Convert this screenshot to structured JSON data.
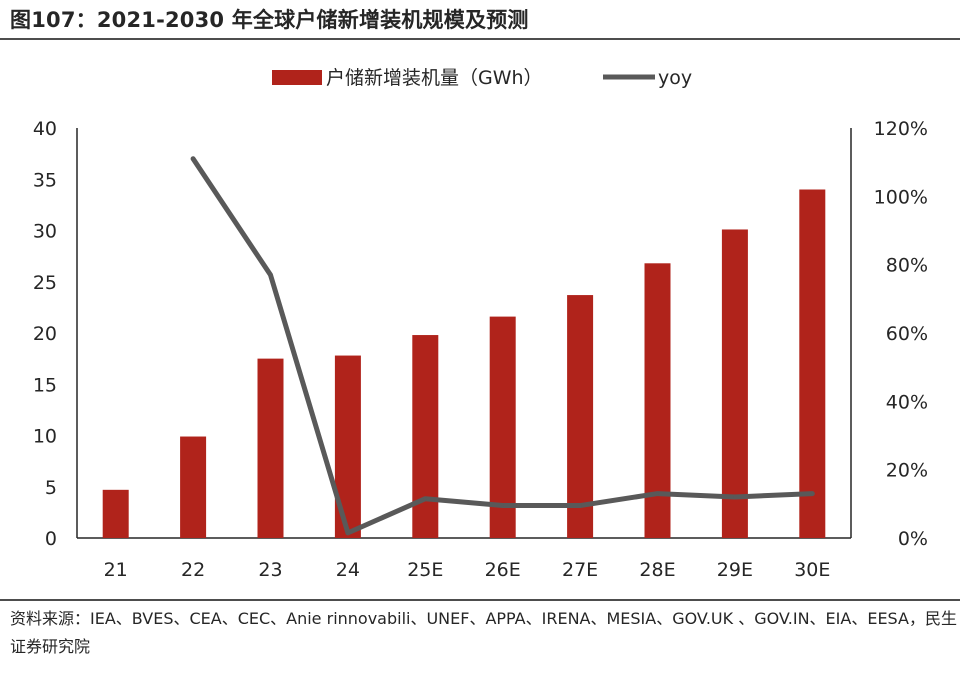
{
  "title": "图107：2021-2030 年全球户储新增装机规模及预测",
  "source": "资料来源：IEA、BVES、CEA、CEC、Anie rinnovabili、UNEF、APPA、IRENA、MESIA、GOV.UK 、GOV.IN、EIA、EESA，民生证券研究院",
  "colors": {
    "bar": "#b0231b",
    "line": "#595959",
    "axis": "#262626"
  },
  "chart_data": {
    "type": "bar",
    "categories": [
      "21",
      "22",
      "23",
      "24",
      "25E",
      "26E",
      "27E",
      "28E",
      "29E",
      "30E"
    ],
    "series": [
      {
        "name": "户储新增装机量（GWh）",
        "type": "bar",
        "axis": "left",
        "values": [
          4.7,
          9.9,
          17.5,
          17.8,
          19.8,
          21.6,
          23.7,
          26.8,
          30.1,
          34.0
        ]
      },
      {
        "name": "yoy",
        "type": "line",
        "axis": "right",
        "unit": "%",
        "values": [
          null,
          111,
          77,
          1.5,
          11.5,
          9.5,
          9.5,
          13,
          12,
          13
        ]
      }
    ],
    "y_left": {
      "min": 0,
      "max": 40,
      "ticks": [
        "0",
        "5",
        "10",
        "15",
        "20",
        "25",
        "30",
        "35",
        "40"
      ]
    },
    "y_right": {
      "min": 0,
      "max": 120,
      "ticks": [
        "0%",
        "20%",
        "40%",
        "60%",
        "80%",
        "100%",
        "120%"
      ]
    },
    "legend": {
      "position": "top",
      "bar_label": "户储新增装机量（GWh）",
      "line_label": "yoy"
    },
    "grid": false
  }
}
